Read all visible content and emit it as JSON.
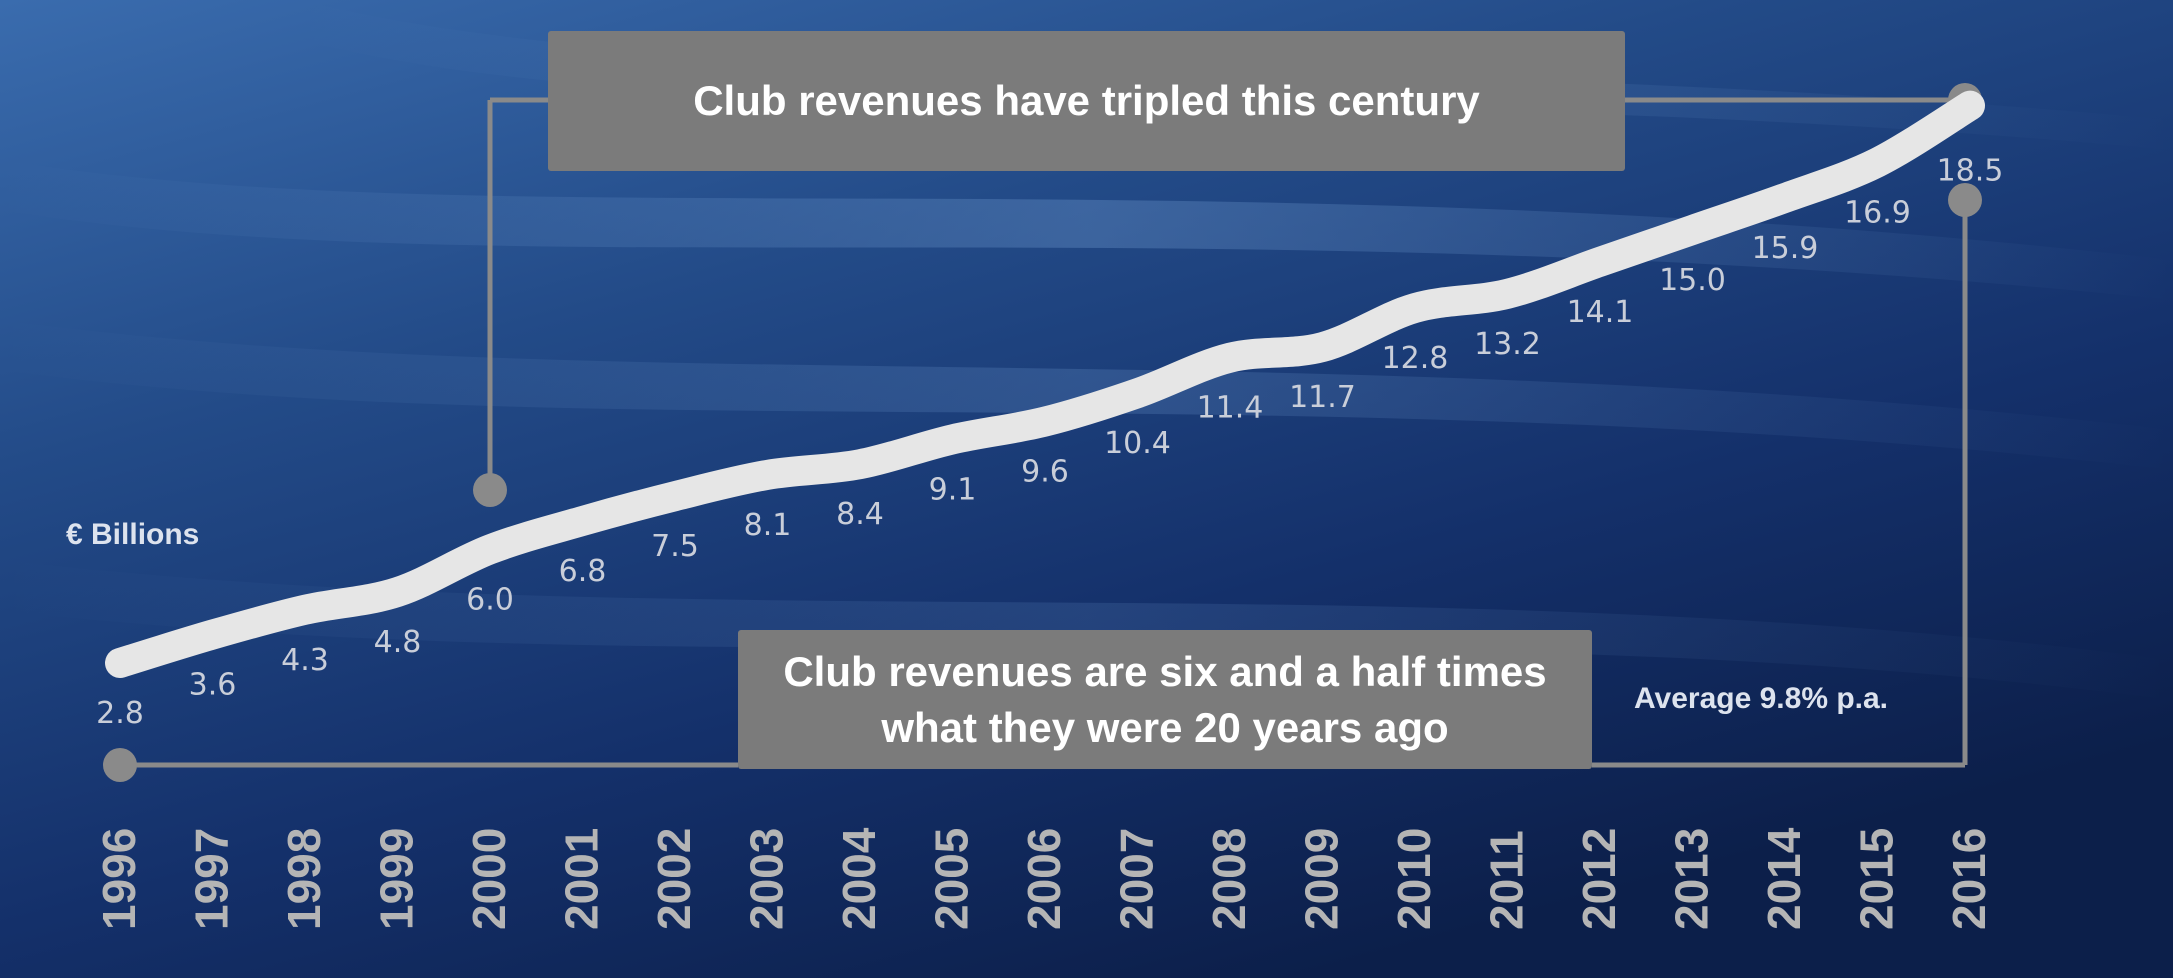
{
  "chart_data": {
    "type": "line",
    "title": "",
    "ylabel": "€ Billions",
    "x": [
      "1996",
      "1997",
      "1998",
      "1999",
      "2000",
      "2001",
      "2002",
      "2003",
      "2004",
      "2005",
      "2006",
      "2007",
      "2008",
      "2009",
      "2010",
      "2011",
      "2012",
      "2013",
      "2014",
      "2015",
      "2016"
    ],
    "values": [
      2.8,
      3.6,
      4.3,
      4.8,
      6.0,
      6.8,
      7.5,
      8.1,
      8.4,
      9.1,
      9.6,
      10.4,
      11.4,
      11.7,
      12.8,
      13.2,
      14.1,
      15.0,
      15.9,
      16.9,
      18.5
    ],
    "value_labels": [
      "2.8",
      "3.6",
      "4.3",
      "4.8",
      "6.0",
      "6.8",
      "7.5",
      "8.1",
      "8.4",
      "9.1",
      "9.6",
      "10.4",
      "11.4",
      "11.7",
      "12.8",
      "13.2",
      "14.1",
      "15.0",
      "15.9",
      "16.9",
      "18.5"
    ],
    "annotations": {
      "top_callout": "Club revenues have tripled this century",
      "bottom_callout_line1": "Club revenues are six and a half times",
      "bottom_callout_line2": "what they were 20 years ago",
      "average": "Average 9.8% p.a."
    },
    "grid": false,
    "legend": "none"
  },
  "colors": {
    "background_dark": "#0e2552",
    "background_light": "#2b5a9a",
    "line": "#e6e6e6",
    "callout": "#7b7b7b",
    "connector": "#8a8a8a",
    "label_text": "#c9ced9",
    "year_text": "#b5b5b5"
  }
}
